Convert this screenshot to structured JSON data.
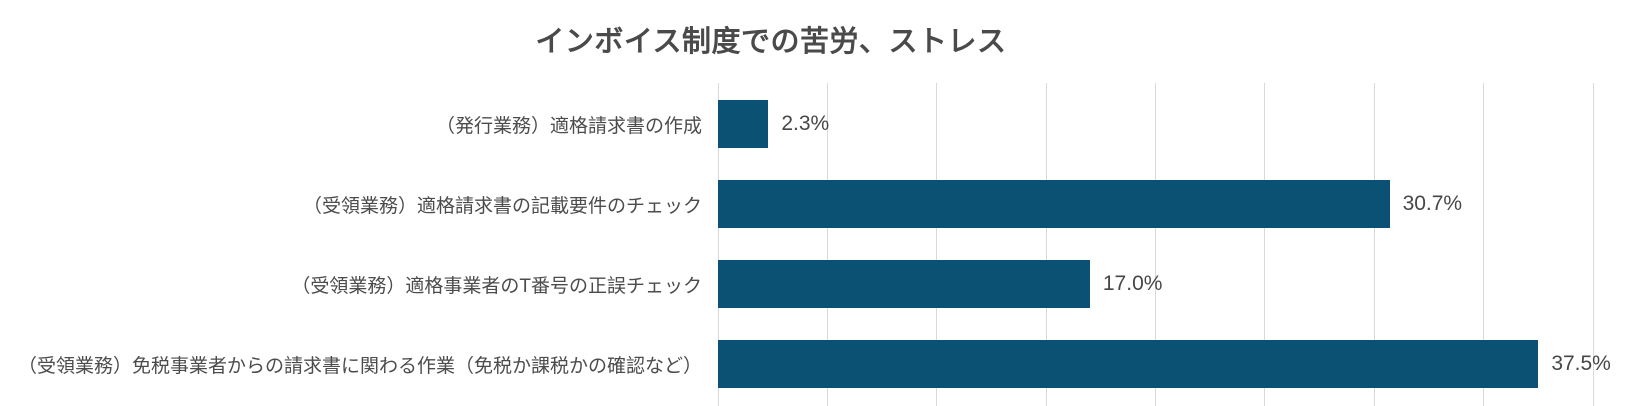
{
  "chart_data": {
    "type": "bar",
    "orientation": "horizontal",
    "title": "インボイス制度での苦労、ストレス",
    "categories": [
      "（発行業務）適格請求書の作成",
      "（受領業務）適格請求書の記載要件のチェック",
      "（受領業務）適格事業者のT番号の正誤チェック",
      "（受領業務）免税事業者からの請求書に関わる作業（免税か課税かの確認など）"
    ],
    "values": [
      2.3,
      30.7,
      17.0,
      37.5
    ],
    "value_labels": [
      "2.3%",
      "30.7%",
      "17.0%",
      "37.5%"
    ],
    "xlabel": "",
    "ylabel": "",
    "xlim": [
      0,
      40
    ],
    "gridline_interval": 5,
    "grid": true,
    "legend": false,
    "bar_color": "#0b5173",
    "gridline_color": "#d9d9d9",
    "title_color": "#4a4a4a",
    "label_color": "#4c4c4c",
    "value_color": "#474747",
    "background_color": "#ffffff"
  }
}
